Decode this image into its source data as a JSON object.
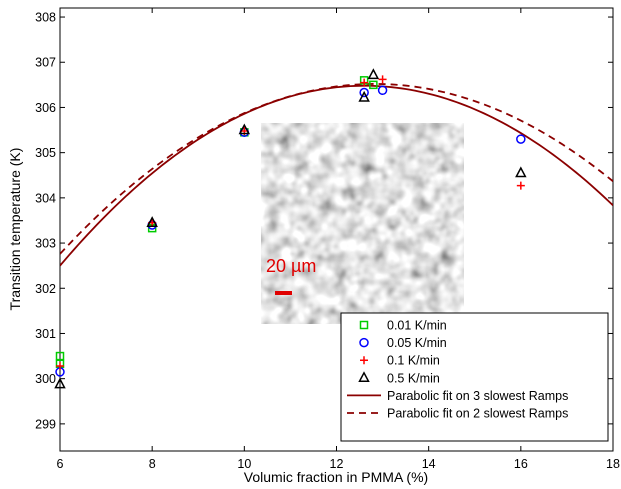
{
  "chart_data": {
    "type": "scatter",
    "title": "",
    "xlabel": "Volumic fraction in PMMA (%)",
    "ylabel": "Transition temperature (K)",
    "xlim": [
      6,
      18
    ],
    "ylim": [
      298.4,
      308.2
    ],
    "xticks": [
      6,
      8,
      10,
      12,
      14,
      16,
      18
    ],
    "yticks": [
      299,
      300,
      301,
      302,
      303,
      304,
      305,
      306,
      307,
      308
    ],
    "grid": false,
    "legend_position": "bottom-right",
    "series": [
      {
        "name": "0.01 K/min",
        "marker": "square",
        "color": "#00cc00",
        "points": [
          [
            6,
            300.5
          ],
          [
            6,
            300.33
          ],
          [
            8,
            303.33
          ],
          [
            10,
            305.45
          ],
          [
            12.6,
            306.6
          ],
          [
            12.8,
            306.5
          ]
        ]
      },
      {
        "name": "0.05 K/min",
        "marker": "circle",
        "color": "#0000ff",
        "points": [
          [
            6,
            300.15
          ],
          [
            8,
            303.4
          ],
          [
            10,
            305.45
          ],
          [
            12.6,
            306.33
          ],
          [
            13.0,
            306.38
          ],
          [
            16,
            305.3
          ]
        ]
      },
      {
        "name": "0.1 K/min",
        "marker": "plus",
        "color": "#ff0000",
        "points": [
          [
            6,
            300.28
          ],
          [
            8,
            303.45
          ],
          [
            10,
            305.48
          ],
          [
            12.6,
            306.55
          ],
          [
            13.0,
            306.62
          ],
          [
            16,
            304.27
          ]
        ]
      },
      {
        "name": "0.5 K/min",
        "marker": "triangle",
        "color": "#000000",
        "points": [
          [
            6,
            299.88
          ],
          [
            8,
            303.45
          ],
          [
            10,
            305.5
          ],
          [
            12.6,
            306.22
          ],
          [
            12.8,
            306.72
          ],
          [
            16,
            304.55
          ]
        ]
      }
    ],
    "fits": [
      {
        "name": "Parabolic fit on 3 slowest Ramps",
        "style": "solid",
        "color": "#8b0000",
        "a": -0.0911,
        "vertex_x": 12.61,
        "vertex_y": 306.48
      },
      {
        "name": "Parabolic fit on 2 slowest Ramps",
        "style": "dashed",
        "color": "#8b0000",
        "a": -0.0806,
        "vertex_x": 12.83,
        "vertex_y": 306.52
      }
    ],
    "inset": {
      "type": "micrograph",
      "scale_bar_label": "20 µm",
      "scale_bar_color": "#e00000"
    }
  }
}
